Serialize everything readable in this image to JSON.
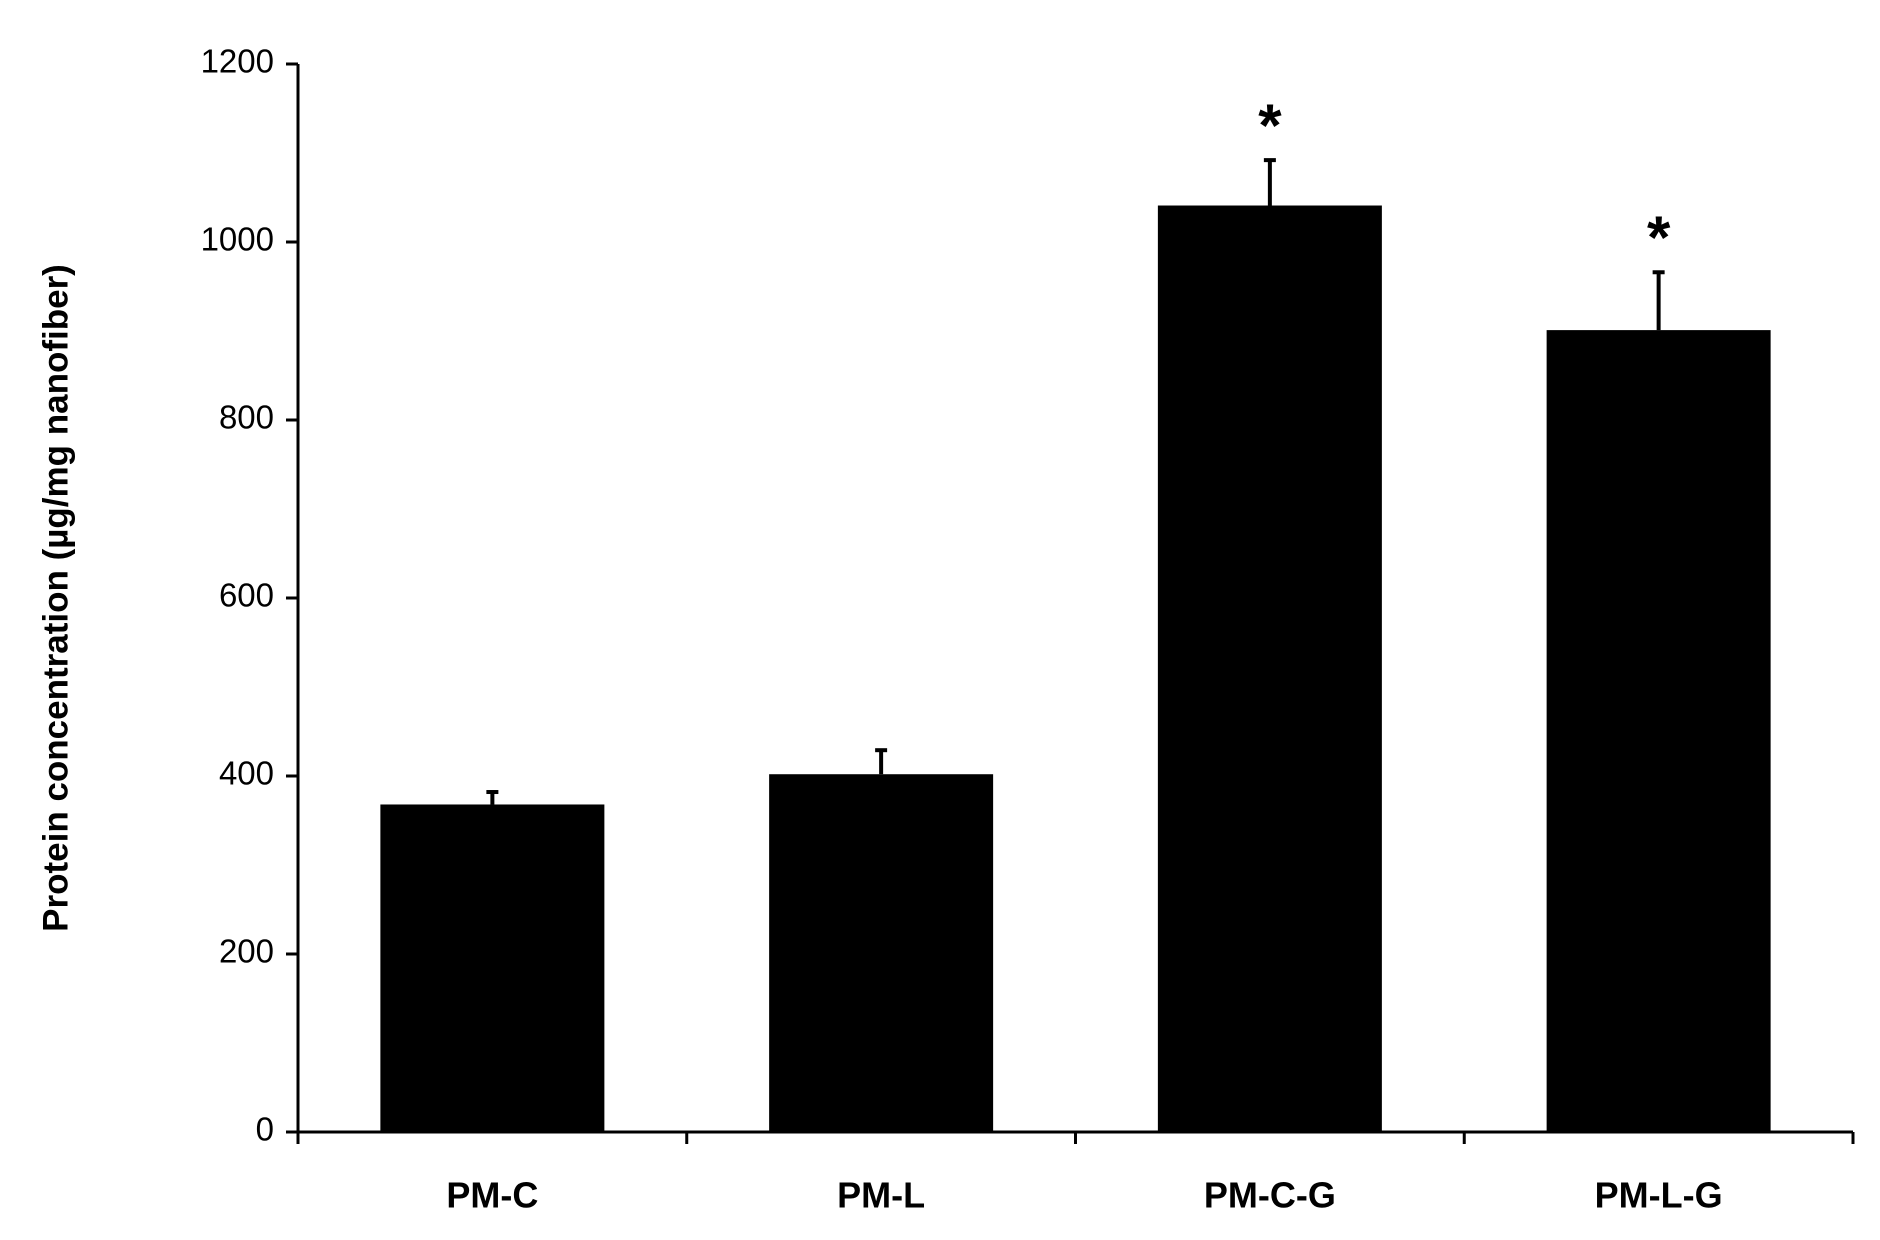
{
  "chart_data": {
    "type": "bar",
    "y_label": "Protein concentration (µg/mg nanofiber)",
    "categories": [
      "PM-C",
      "PM-L",
      "PM-C-G",
      "PM-L-G"
    ],
    "values": [
      368,
      402,
      1041,
      901
    ],
    "errors": [
      14,
      27,
      51,
      65
    ],
    "annotations": [
      null,
      null,
      "*",
      "*"
    ],
    "color": "#000000",
    "ylim": [
      0,
      1200
    ],
    "yticks": [
      0,
      200,
      400,
      600,
      800,
      1000,
      1200
    ],
    "grid": false
  }
}
